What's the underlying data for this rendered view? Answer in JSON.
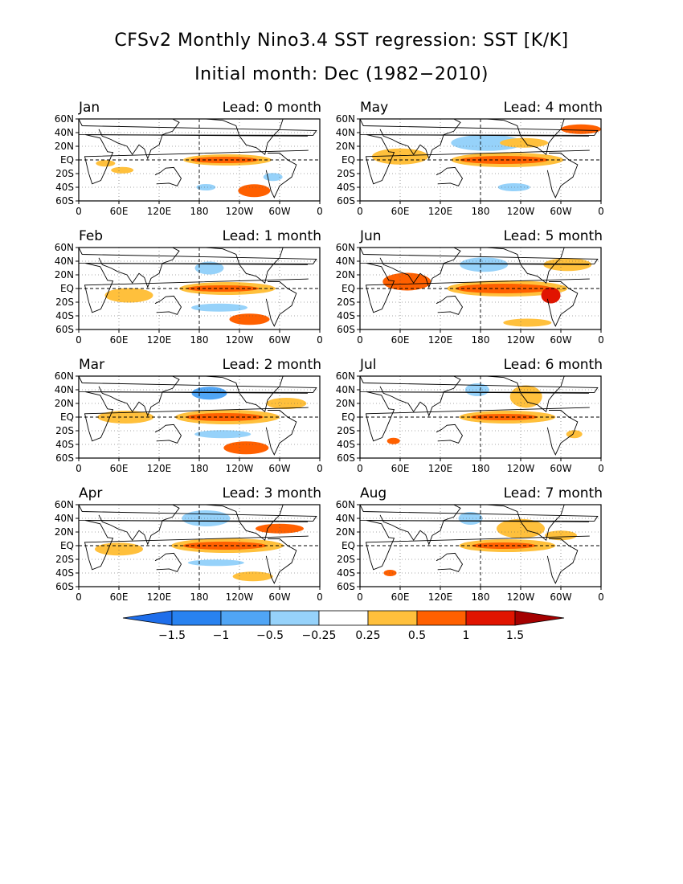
{
  "figure": {
    "title": "CFSv2 Monthly Nino3.4 SST regression: SST [K/K]",
    "subtitle": "Initial month: Dec (1982−2010)"
  },
  "axes": {
    "lat_labels": [
      "60N",
      "40N",
      "20N",
      "EQ",
      "20S",
      "40S",
      "60S"
    ],
    "lon_labels": [
      "0",
      "60E",
      "120E",
      "180",
      "120W",
      "60W",
      "0"
    ]
  },
  "colors": {
    "neg_very_strong": "#1e6eeb",
    "neg_strong": "#2882f0",
    "neg_moderate": "#50a5f5",
    "neg_weak": "#96d2fa",
    "neutral": "#ffffff",
    "pos_weak": "#ffc03c",
    "pos_moderate": "#ff6000",
    "pos_strong": "#e11400",
    "pos_very_strong": "#a50000",
    "land_outline": "#000000"
  },
  "colorbar": {
    "levels": [
      "−1.5",
      "−1",
      "−0.5",
      "−0.25",
      "0.25",
      "0.5",
      "1",
      "1.5"
    ],
    "fill_colors": [
      "#1e6eeb",
      "#2882f0",
      "#50a5f5",
      "#96d2fa",
      "#ffffff",
      "#ffc03c",
      "#ff6000",
      "#e11400",
      "#a50000"
    ]
  },
  "panels": [
    {
      "month": "Jan",
      "lead": "Lead: 0 month"
    },
    {
      "month": "May",
      "lead": "Lead: 4 month"
    },
    {
      "month": "Feb",
      "lead": "Lead: 1 month"
    },
    {
      "month": "Jun",
      "lead": "Lead: 5 month"
    },
    {
      "month": "Mar",
      "lead": "Lead: 2 month"
    },
    {
      "month": "Jul",
      "lead": "Lead: 6 month"
    },
    {
      "month": "Apr",
      "lead": "Lead: 3 month"
    },
    {
      "month": "Aug",
      "lead": "Lead: 7 month"
    }
  ]
}
